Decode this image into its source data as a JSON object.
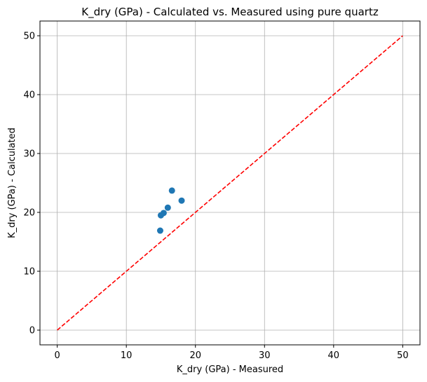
{
  "chart_data": {
    "type": "scatter",
    "title": "K_dry (GPa) - Calculated vs. Measured using pure quartz",
    "xlabel": "K_dry (GPa) - Measured",
    "ylabel": "K_dry (GPa) - Calculated",
    "xlim": [
      -2.5,
      52.5
    ],
    "ylim": [
      -2.5,
      52.5
    ],
    "xticks": [
      0,
      10,
      20,
      30,
      40,
      50
    ],
    "yticks": [
      0,
      10,
      20,
      30,
      40,
      50
    ],
    "grid": true,
    "series": [
      {
        "kind": "scatter",
        "color": "#1f77b4",
        "points": [
          {
            "x": 14.9,
            "y": 16.9
          },
          {
            "x": 15.0,
            "y": 19.5
          },
          {
            "x": 15.4,
            "y": 19.9
          },
          {
            "x": 16.0,
            "y": 20.8
          },
          {
            "x": 16.6,
            "y": 23.7
          },
          {
            "x": 18.0,
            "y": 22.0
          }
        ]
      },
      {
        "kind": "line",
        "style": "dashed",
        "color": "#ff0000",
        "points": [
          {
            "x": 0,
            "y": 0
          },
          {
            "x": 50,
            "y": 50
          }
        ]
      }
    ]
  }
}
